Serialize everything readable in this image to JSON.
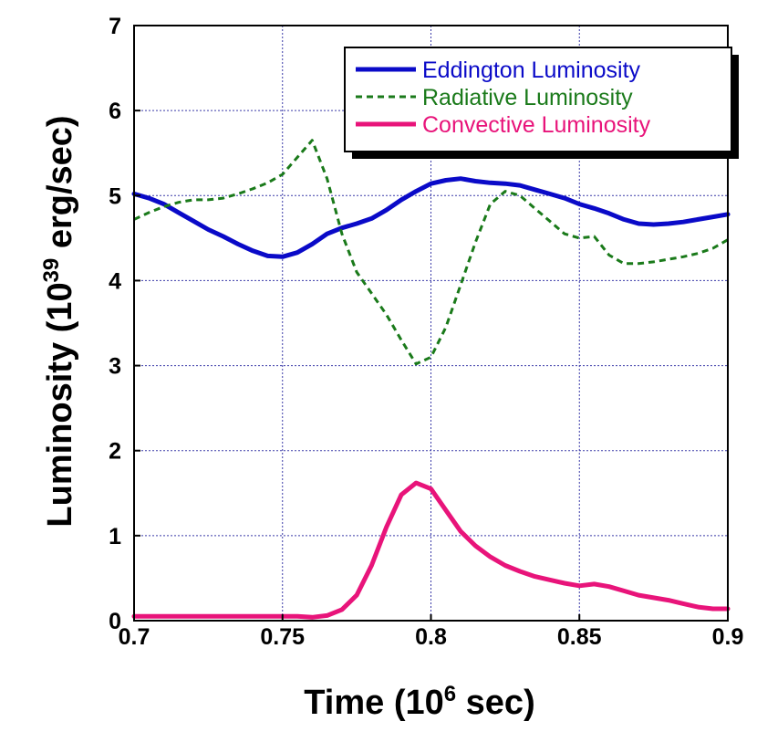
{
  "chart_data": {
    "type": "line",
    "xlabel": {
      "pre": "Time (10",
      "sup": "6",
      "post": " sec)"
    },
    "ylabel": {
      "pre": "Luminosity  (10",
      "sup": "39",
      "post": " erg/sec)"
    },
    "xlim": [
      0.7,
      0.9
    ],
    "ylim": [
      0,
      7
    ],
    "xticks": [
      0.7,
      0.75,
      0.8,
      0.85,
      0.9
    ],
    "xtick_labels": [
      "0.7",
      "0.75",
      "0.8",
      "0.85",
      "0.9"
    ],
    "yticks": [
      0,
      1,
      2,
      3,
      4,
      5,
      6,
      7
    ],
    "ytick_labels": [
      "0",
      "1",
      "2",
      "3",
      "4",
      "5",
      "6",
      "7"
    ],
    "grid": true,
    "legend_position": "top-right",
    "series": [
      {
        "name": "Eddington Luminosity",
        "color": "#0a0ac8",
        "style": "solid",
        "x": [
          0.7,
          0.705,
          0.71,
          0.715,
          0.72,
          0.725,
          0.73,
          0.735,
          0.74,
          0.745,
          0.75,
          0.755,
          0.76,
          0.765,
          0.77,
          0.775,
          0.78,
          0.785,
          0.79,
          0.795,
          0.8,
          0.805,
          0.81,
          0.815,
          0.82,
          0.825,
          0.83,
          0.835,
          0.84,
          0.845,
          0.85,
          0.855,
          0.86,
          0.865,
          0.87,
          0.875,
          0.88,
          0.885,
          0.89,
          0.895,
          0.9
        ],
        "y": [
          5.02,
          4.97,
          4.9,
          4.8,
          4.7,
          4.6,
          4.52,
          4.43,
          4.35,
          4.29,
          4.28,
          4.33,
          4.43,
          4.55,
          4.62,
          4.67,
          4.73,
          4.83,
          4.95,
          5.05,
          5.14,
          5.18,
          5.2,
          5.17,
          5.15,
          5.14,
          5.12,
          5.07,
          5.02,
          4.97,
          4.9,
          4.85,
          4.79,
          4.72,
          4.67,
          4.66,
          4.67,
          4.69,
          4.72,
          4.75,
          4.78
        ]
      },
      {
        "name": "Radiative Luminosity",
        "color": "#1a7a1a",
        "style": "dashed",
        "x": [
          0.7,
          0.705,
          0.71,
          0.715,
          0.72,
          0.725,
          0.73,
          0.735,
          0.74,
          0.745,
          0.75,
          0.755,
          0.76,
          0.765,
          0.77,
          0.775,
          0.78,
          0.785,
          0.79,
          0.795,
          0.8,
          0.805,
          0.81,
          0.815,
          0.82,
          0.825,
          0.83,
          0.835,
          0.84,
          0.845,
          0.85,
          0.855,
          0.86,
          0.865,
          0.87,
          0.875,
          0.88,
          0.885,
          0.89,
          0.895,
          0.9
        ],
        "y": [
          4.72,
          4.8,
          4.87,
          4.92,
          4.95,
          4.95,
          4.97,
          5.02,
          5.08,
          5.15,
          5.25,
          5.45,
          5.65,
          5.2,
          4.55,
          4.1,
          3.85,
          3.6,
          3.3,
          3.02,
          3.1,
          3.45,
          3.95,
          4.45,
          4.9,
          5.05,
          5.0,
          4.85,
          4.7,
          4.55,
          4.5,
          4.52,
          4.3,
          4.2,
          4.2,
          4.22,
          4.25,
          4.28,
          4.32,
          4.38,
          4.48
        ]
      },
      {
        "name": "Convective Luminosity",
        "color": "#e8147a",
        "style": "solid",
        "x": [
          0.7,
          0.71,
          0.72,
          0.73,
          0.74,
          0.75,
          0.755,
          0.76,
          0.765,
          0.77,
          0.775,
          0.78,
          0.785,
          0.79,
          0.795,
          0.8,
          0.805,
          0.81,
          0.815,
          0.82,
          0.825,
          0.83,
          0.835,
          0.84,
          0.845,
          0.85,
          0.855,
          0.86,
          0.865,
          0.87,
          0.875,
          0.88,
          0.885,
          0.89,
          0.895,
          0.9
        ],
        "y": [
          0.05,
          0.05,
          0.05,
          0.05,
          0.05,
          0.05,
          0.05,
          0.04,
          0.06,
          0.13,
          0.3,
          0.65,
          1.1,
          1.48,
          1.62,
          1.55,
          1.3,
          1.05,
          0.88,
          0.75,
          0.65,
          0.58,
          0.52,
          0.48,
          0.44,
          0.41,
          0.43,
          0.4,
          0.35,
          0.3,
          0.27,
          0.24,
          0.2,
          0.16,
          0.14,
          0.14
        ]
      }
    ]
  }
}
